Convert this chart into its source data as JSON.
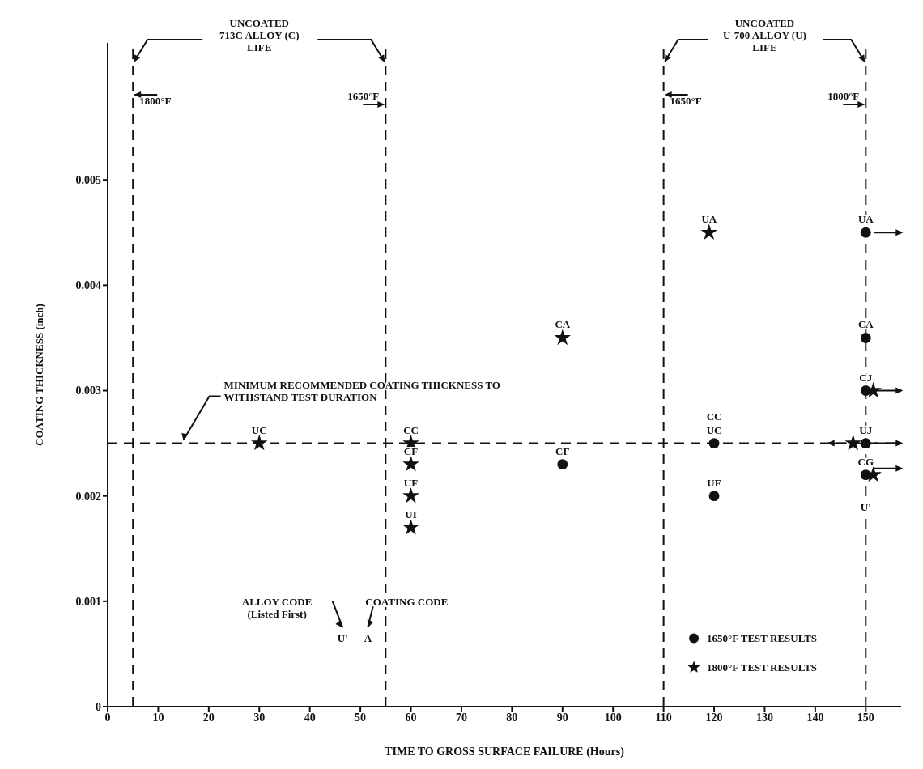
{
  "chart_data": {
    "type": "scatter",
    "xlabel": "TIME TO GROSS SURFACE FAILURE (Hours)",
    "ylabel": "COATING THICKNESS (inch)",
    "xlim": [
      0,
      157
    ],
    "xticks": [
      0,
      10,
      20,
      30,
      40,
      50,
      60,
      70,
      80,
      90,
      100,
      110,
      120,
      130,
      140,
      150
    ],
    "ylim": [
      0,
      0.0063
    ],
    "yticks": [
      0,
      0.001,
      0.002,
      0.003,
      0.004,
      0.005
    ],
    "grid": false,
    "legend": "bottom right",
    "series": [
      {
        "name": "1650°F TEST RESULTS",
        "color": "#111111",
        "marker": "circle",
        "x": [
          90,
          120,
          120,
          150,
          150,
          150,
          150,
          150
        ],
        "values": [
          0.0023,
          0.0025,
          0.002,
          0.0045,
          0.0035,
          0.003,
          0.0025,
          0.0022
        ],
        "value_labels": [
          "CF",
          "CC\nUC",
          "UF",
          "UA",
          "CA",
          "CJ",
          "UJ",
          "CG"
        ]
      },
      {
        "name": "1800°F TEST RESULTS",
        "color": "#111111",
        "marker": "star",
        "x": [
          30,
          60,
          60,
          60,
          60,
          90,
          119,
          147.5,
          151.5,
          151.5
        ],
        "values": [
          0.0025,
          0.0025,
          0.0023,
          0.002,
          0.0017,
          0.0035,
          0.0045,
          0.0025,
          0.003,
          0.0022
        ],
        "value_labels": [
          "UC",
          "CC",
          "CF",
          "UF",
          "UI",
          "CA",
          "UA",
          null,
          null,
          null
        ]
      }
    ],
    "ref_lines": [
      {
        "axis": "x",
        "value": 5,
        "label": "1800°F",
        "line_style": "dashed"
      },
      {
        "axis": "x",
        "value": 55,
        "label": "1650°F",
        "line_style": "dashed"
      },
      {
        "axis": "x",
        "value": 110,
        "label": "1650°F",
        "line_style": "dashed"
      },
      {
        "axis": "x",
        "value": 150,
        "label": "1800°F",
        "line_style": "dashed"
      },
      {
        "axis": "y",
        "value": 0.0025,
        "label": "MINIMUM RECOMMENDED COATING THICKNESS TO\nWITHSTAND TEST DURATION",
        "line_style": "dashed"
      }
    ],
    "annotations": [
      "UNCOATED\n713C ALLOY (C)\nLIFE",
      "UNCOATED\nU-700 ALLOY (U)\nLIFE",
      "ALLOY CODE\n(Listed First)",
      "COATING CODE",
      "U'",
      "A",
      "U'"
    ]
  }
}
